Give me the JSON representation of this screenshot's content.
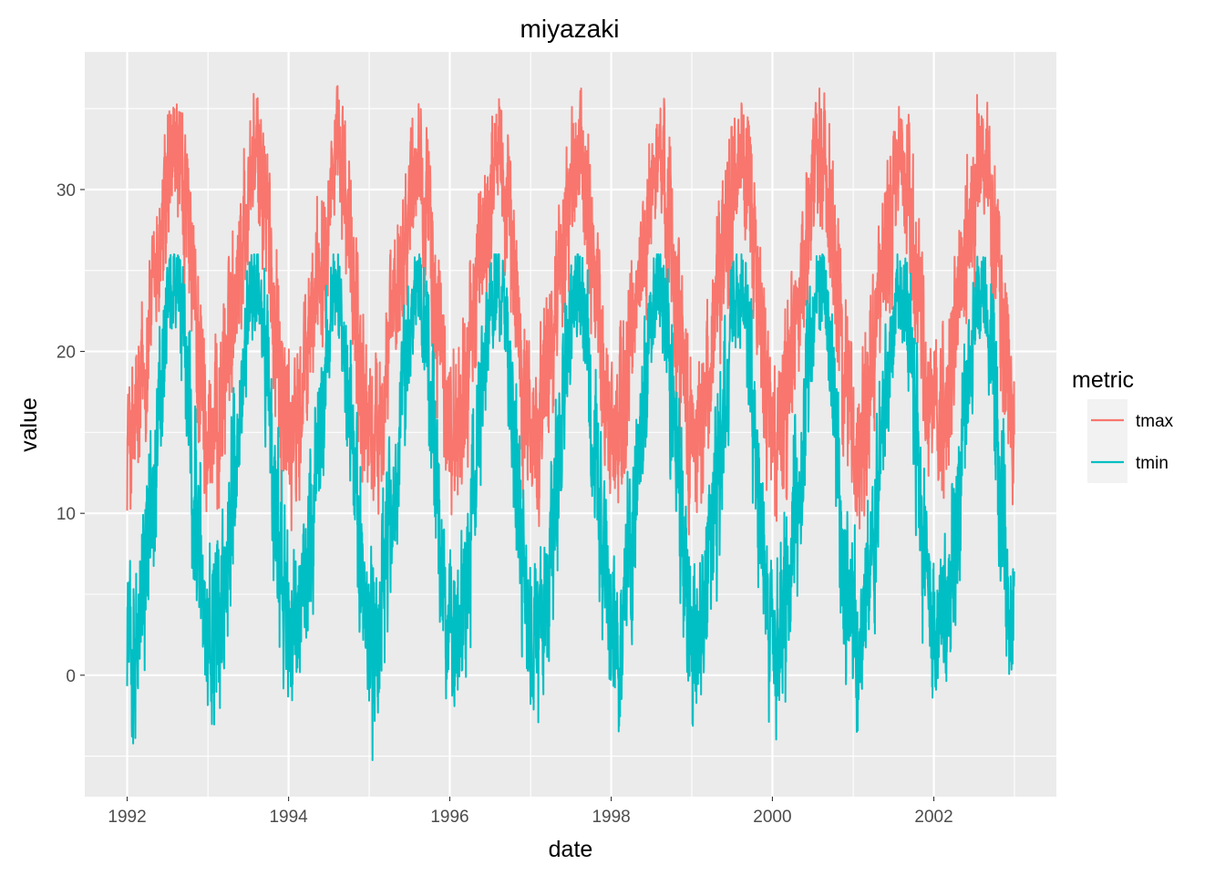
{
  "chart_data": {
    "type": "line",
    "title": "miyazaki",
    "xlabel": "date",
    "ylabel": "value",
    "xlim": [
      "1991-06-23",
      "2003-07-10"
    ],
    "ylim": [
      -7.5,
      38.5
    ],
    "x_ticks": [
      "1992",
      "1994",
      "1996",
      "1998",
      "2000",
      "2002"
    ],
    "y_ticks": [
      "0",
      "10",
      "20",
      "30"
    ],
    "grid": true,
    "legend": {
      "title": "metric",
      "position": "right"
    },
    "x_start": "1992-01-01",
    "x_end": "2002-12-31",
    "series": [
      {
        "name": "tmax",
        "color": "#F8766D",
        "monthly_mean": [
          14.5,
          15.5,
          18.5,
          22.5,
          25.5,
          28.0,
          31.5,
          32.0,
          29.5,
          25.0,
          20.5,
          16.0
        ],
        "monthly_min": [
          9.0,
          7.0,
          10.0,
          16.0,
          19.0,
          20.0,
          26.0,
          26.5,
          21.0,
          17.0,
          11.0,
          7.5
        ],
        "monthly_max": [
          21.0,
          22.0,
          23.5,
          27.5,
          31.0,
          33.5,
          36.0,
          36.5,
          34.0,
          29.5,
          25.0,
          20.5
        ]
      },
      {
        "name": "tmin",
        "color": "#00BFC4",
        "monthly_mean": [
          2.0,
          3.0,
          6.0,
          10.5,
          15.0,
          19.5,
          23.5,
          24.0,
          20.5,
          14.0,
          8.5,
          3.5
        ],
        "monthly_min": [
          -5.5,
          -4.5,
          -2.0,
          2.0,
          8.0,
          13.0,
          19.0,
          19.5,
          14.0,
          5.5,
          0.0,
          -3.5
        ],
        "monthly_max": [
          9.0,
          10.0,
          13.0,
          16.5,
          20.5,
          24.5,
          26.0,
          26.0,
          25.0,
          20.5,
          15.0,
          10.0
        ]
      }
    ]
  }
}
